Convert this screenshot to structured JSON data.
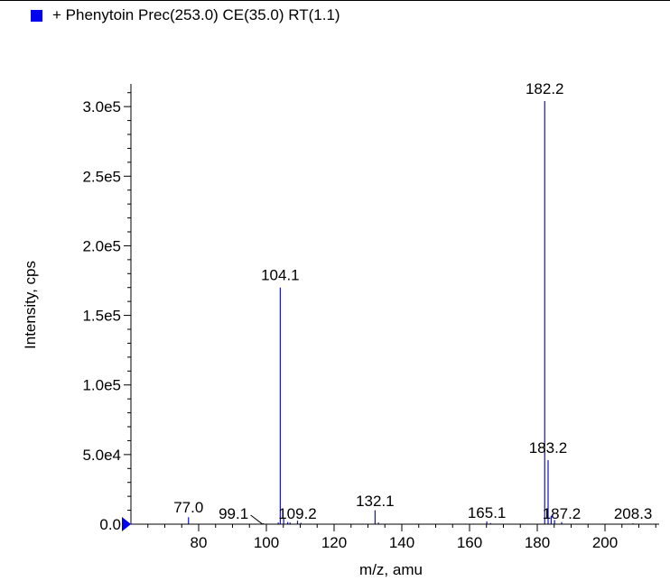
{
  "legend": {
    "label": "+ Phenytoin Prec(253.0) CE(35.0) RT(1.1)"
  },
  "colors": {
    "series": "#1010c8",
    "axis": "#000000",
    "marker": "#0000ee"
  },
  "chart_data": {
    "type": "bar",
    "xlabel": "m/z, amu",
    "ylabel": "Intensity, cps",
    "xlim": [
      60,
      216
    ],
    "ylim": [
      0,
      315000
    ],
    "x_ticks": [
      80,
      100,
      120,
      140,
      160,
      180,
      200
    ],
    "x_tick_labels": [
      "80",
      "100",
      "120",
      "140",
      "160",
      "180",
      "200"
    ],
    "y_ticks": [
      0,
      50000,
      100000,
      150000,
      200000,
      250000,
      300000
    ],
    "y_tick_labels": [
      "0.0",
      "5.0e4",
      "1.0e5",
      "1.5e5",
      "2.0e5",
      "2.5e5",
      "3.0e5"
    ],
    "legend_position": "top-left",
    "grid": false,
    "peaks": [
      {
        "x": 77.0,
        "y": 5000
      },
      {
        "x": 99.1,
        "y": 700
      },
      {
        "x": 103.5,
        "y": 1200
      },
      {
        "x": 104.1,
        "y": 170000
      },
      {
        "x": 105.1,
        "y": 4000
      },
      {
        "x": 106.3,
        "y": 1500
      },
      {
        "x": 107.0,
        "y": 1200
      },
      {
        "x": 109.2,
        "y": 2500
      },
      {
        "x": 110.2,
        "y": 1000
      },
      {
        "x": 132.1,
        "y": 10000
      },
      {
        "x": 133.1,
        "y": 1200
      },
      {
        "x": 165.1,
        "y": 2000
      },
      {
        "x": 166.2,
        "y": 800
      },
      {
        "x": 182.2,
        "y": 304000
      },
      {
        "x": 183.2,
        "y": 46000
      },
      {
        "x": 184.1,
        "y": 6000
      },
      {
        "x": 185.1,
        "y": 3000
      },
      {
        "x": 187.2,
        "y": 1500
      },
      {
        "x": 208.3,
        "y": 600
      }
    ],
    "peak_labels": [
      {
        "text": "77.0",
        "x": 77.0,
        "y": 5000
      },
      {
        "text": "99.1",
        "x": 99.1,
        "y": 700
      },
      {
        "text": "104.1",
        "x": 104.1,
        "y": 170000
      },
      {
        "text": "109.2",
        "x": 109.2,
        "y": 2500
      },
      {
        "text": "132.1",
        "x": 132.1,
        "y": 10000
      },
      {
        "text": "165.1",
        "x": 165.1,
        "y": 2000
      },
      {
        "text": "182.2",
        "x": 182.2,
        "y": 304000
      },
      {
        "text": "183.2",
        "x": 183.2,
        "y": 46000
      },
      {
        "text": "187.2",
        "x": 187.2,
        "y": 1500
      },
      {
        "text": "208.3",
        "x": 208.3,
        "y": 600
      }
    ]
  }
}
